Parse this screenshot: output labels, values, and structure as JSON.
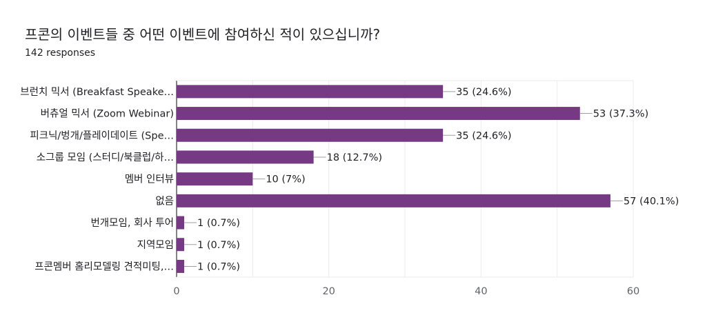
{
  "header": {
    "title": "프콘의 이벤트들 중 어떤 이벤트에 참여하신 적이 있으십니까?",
    "responses": "142 responses"
  },
  "chart_data": {
    "type": "bar",
    "orientation": "horizontal",
    "categories": [
      "브런치 믹서 (Breakfast Speake…",
      "버츄얼 믹서 (Zoom Webinar)",
      "피크닉/벙개/플레이데이트 (Spe…",
      "소그룹 모임 (스터디/북클럽/하…",
      "멤버 인터뷰",
      "없음",
      "번개모임, 회사 투어",
      "지역모임",
      "프콘멤버 홈리모델링 견적미팅,…"
    ],
    "values": [
      35,
      53,
      35,
      18,
      10,
      57,
      1,
      1,
      1
    ],
    "value_labels": [
      "35 (24.6%)",
      "53 (37.3%)",
      "35 (24.6%)",
      "18 (12.7%)",
      "10 (7%)",
      "57 (40.1%)",
      "1 (0.7%)",
      "1 (0.7%)",
      "1 (0.7%)"
    ],
    "xlim": [
      0,
      60
    ],
    "xticks": [
      0,
      20,
      40,
      60
    ],
    "grid": true,
    "bar_color": "#763a85"
  }
}
